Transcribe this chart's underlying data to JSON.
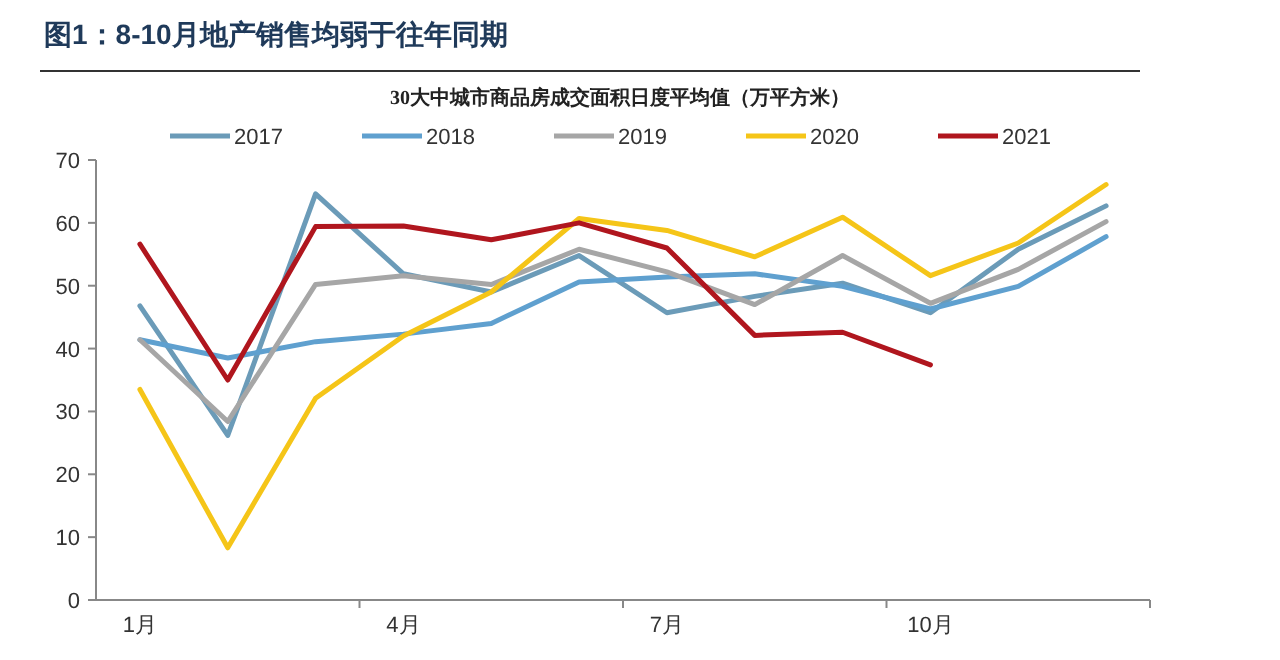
{
  "chart_data": {
    "type": "line",
    "title": "图1：8-10月地产销售均弱于往年同期",
    "subtitle": "30大中城市商品房成交面积日度平均值（万平方米）",
    "categories": [
      "1月",
      null,
      null,
      "4月",
      null,
      null,
      "7月",
      null,
      null,
      "10月",
      null,
      null
    ],
    "series": [
      {
        "name": "2017",
        "color": "#6b9bb8",
        "values": [
          46.8,
          26.2,
          64.6,
          51.9,
          49,
          54.8,
          45.7,
          48.3,
          50.4,
          45.7,
          55.8,
          62.7
        ]
      },
      {
        "name": "2018",
        "color": "#5fa0cf",
        "values": [
          41.4,
          38.5,
          41.1,
          42.3,
          44,
          50.6,
          51.4,
          51.9,
          49.9,
          46.3,
          49.9,
          57.8
        ]
      },
      {
        "name": "2019",
        "color": "#a6a6a6",
        "values": [
          41.4,
          28.4,
          50.2,
          51.6,
          50.2,
          55.8,
          52.2,
          47,
          54.8,
          47.2,
          52.6,
          60.2
        ]
      },
      {
        "name": "2020",
        "color": "#f5c518",
        "values": [
          33.5,
          8.3,
          32.1,
          42,
          49,
          60.7,
          58.8,
          54.6,
          60.9,
          51.6,
          56.8,
          66.1
        ]
      },
      {
        "name": "2021",
        "color": "#b0161e",
        "values": [
          56.6,
          35,
          59.4,
          59.5,
          57.3,
          60,
          56,
          42.1,
          42.6,
          37.4,
          null,
          null
        ]
      }
    ],
    "ylim": [
      0,
      70
    ],
    "yticks": [
      0,
      10,
      20,
      30,
      40,
      50,
      60,
      70
    ],
    "grid": false,
    "legend": "top",
    "marker": "none",
    "line_style": "solid"
  }
}
